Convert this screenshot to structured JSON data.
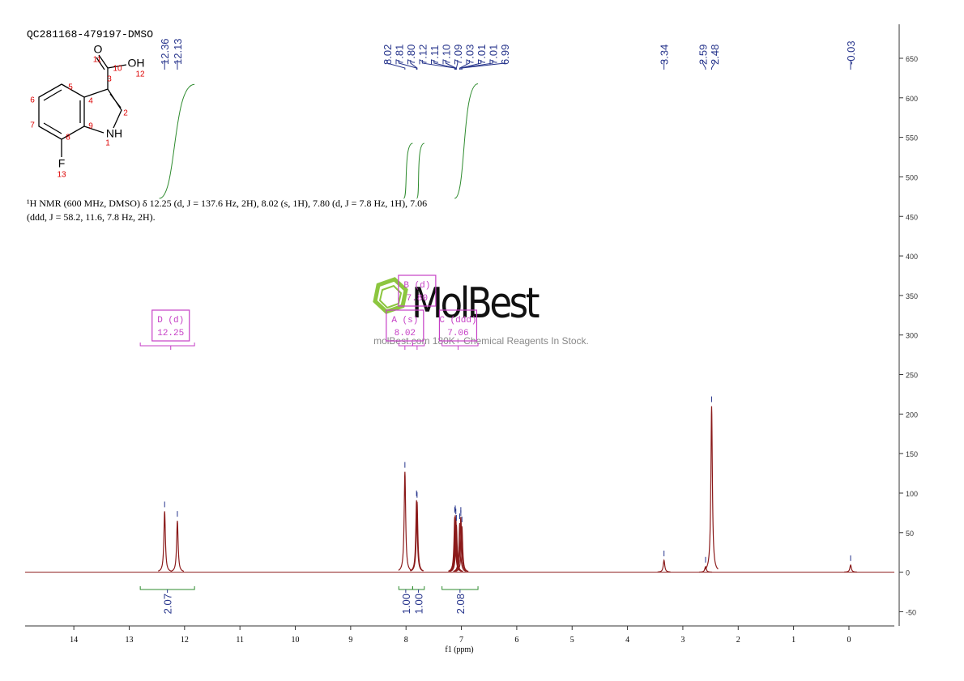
{
  "chart_data": {
    "type": "spectrum",
    "title": "QC281168-479197-DMSO",
    "xlabel": "f1 (ppm)",
    "color": "#8b1a1a",
    "label_color": "#27358c",
    "integral_color": "#2e8b2e",
    "multiplet_color": "#c63fc6",
    "xlim": [
      14.88,
      -0.82
    ],
    "xticks": [
      14,
      13,
      12,
      11,
      10,
      9,
      8,
      7,
      6,
      5,
      4,
      3,
      2,
      1,
      0
    ],
    "ylim": [
      -68,
      693
    ],
    "yticks": [
      -50,
      0,
      50,
      100,
      150,
      200,
      250,
      300,
      350,
      400,
      450,
      500,
      550,
      600,
      650
    ],
    "x": [
      12.36,
      12.13,
      8.02,
      7.81,
      7.8,
      7.12,
      7.11,
      7.1,
      7.09,
      7.03,
      7.01,
      7.01,
      6.99,
      3.34,
      2.59,
      2.48,
      -0.03
    ],
    "values": [
      77,
      65,
      127,
      91,
      89,
      70,
      72,
      68,
      60,
      62,
      70,
      66,
      58,
      15,
      7,
      210,
      9
    ],
    "peak_labels": [
      "12.36",
      "12.13",
      "8.02",
      "7.81",
      "7.80",
      "7.12",
      "7.11",
      "7.10",
      "7.09",
      "7.03",
      "7.01",
      "7.01",
      "6.99",
      "3.34",
      "2.59",
      "2.48",
      "-0.03"
    ],
    "integrals": [
      {
        "value": 2.07,
        "range": [
          12.8,
          11.82
        ]
      },
      {
        "value": 1,
        "label": "1.00",
        "range": [
          8.13,
          7.88
        ]
      },
      {
        "value": 1,
        "label": "1.00",
        "range": [
          7.88,
          7.67
        ]
      },
      {
        "value": 2.08,
        "range": [
          7.35,
          6.7
        ]
      }
    ],
    "multiplets": [
      {
        "name": "D (d)",
        "shift": 12.25,
        "range": [
          12.8,
          11.82
        ]
      },
      {
        "name": "A (s)",
        "shift": 8.02,
        "range": [
          8.13,
          7.88
        ]
      },
      {
        "name": "B (d)",
        "shift": {
          "value": 7.8,
          "label": "7.80"
        },
        "range": [
          7.88,
          7.67
        ]
      },
      {
        "name": "C (ddd)",
        "shift": 7.06,
        "range": [
          7.35,
          6.7
        ]
      }
    ],
    "annotation": [
      "¹H NMR (600 MHz, DMSO) δ 12.25 (d, J = 137.6 Hz, 2H), 8.02 (s, 1H), 7.80 (d, J = 7.8 Hz, 1H), 7.06",
      "(ddd, J = 58.2, 11.6, 7.8 Hz, 2H)."
    ],
    "watermark": {
      "brand": "MolBest",
      "tagline": "molBest.com 180K+ Chemical Reagents In Stock."
    }
  },
  "structure": {
    "labels": [
      "O",
      "OH",
      "NH",
      "F",
      "1",
      "2",
      "3",
      "4",
      "5",
      "6",
      "7",
      "8",
      "9",
      "10",
      "11",
      "12",
      "13"
    ]
  }
}
